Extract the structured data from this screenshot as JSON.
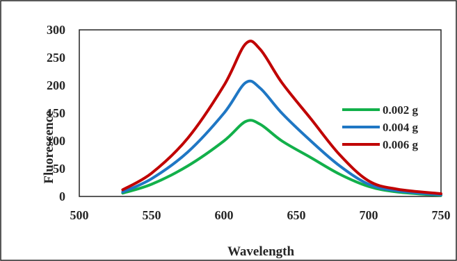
{
  "chart_data": {
    "type": "line",
    "xlabel": "Wavelength",
    "ylabel": "Fluorescence",
    "xlim": [
      500,
      750
    ],
    "ylim": [
      0,
      300
    ],
    "x_ticks": [
      500,
      550,
      600,
      650,
      700,
      750
    ],
    "y_ticks": [
      0,
      50,
      100,
      150,
      200,
      250,
      300
    ],
    "grid": false,
    "legend_position": "right",
    "x": [
      530,
      550,
      575,
      600,
      615,
      625,
      640,
      660,
      680,
      700,
      720,
      750
    ],
    "series": [
      {
        "name": "0.002 g",
        "color": "#12b04a",
        "values": [
          6,
          22,
          55,
          100,
          135,
          130,
          100,
          70,
          40,
          18,
          8,
          2
        ]
      },
      {
        "name": "0.004 g",
        "color": "#1f77c4",
        "values": [
          8,
          32,
          80,
          150,
          205,
          195,
          150,
          100,
          55,
          22,
          10,
          3
        ]
      },
      {
        "name": "0.006 g",
        "color": "#c00000",
        "values": [
          12,
          42,
          105,
          200,
          275,
          265,
          205,
          140,
          75,
          28,
          13,
          5
        ]
      }
    ]
  }
}
